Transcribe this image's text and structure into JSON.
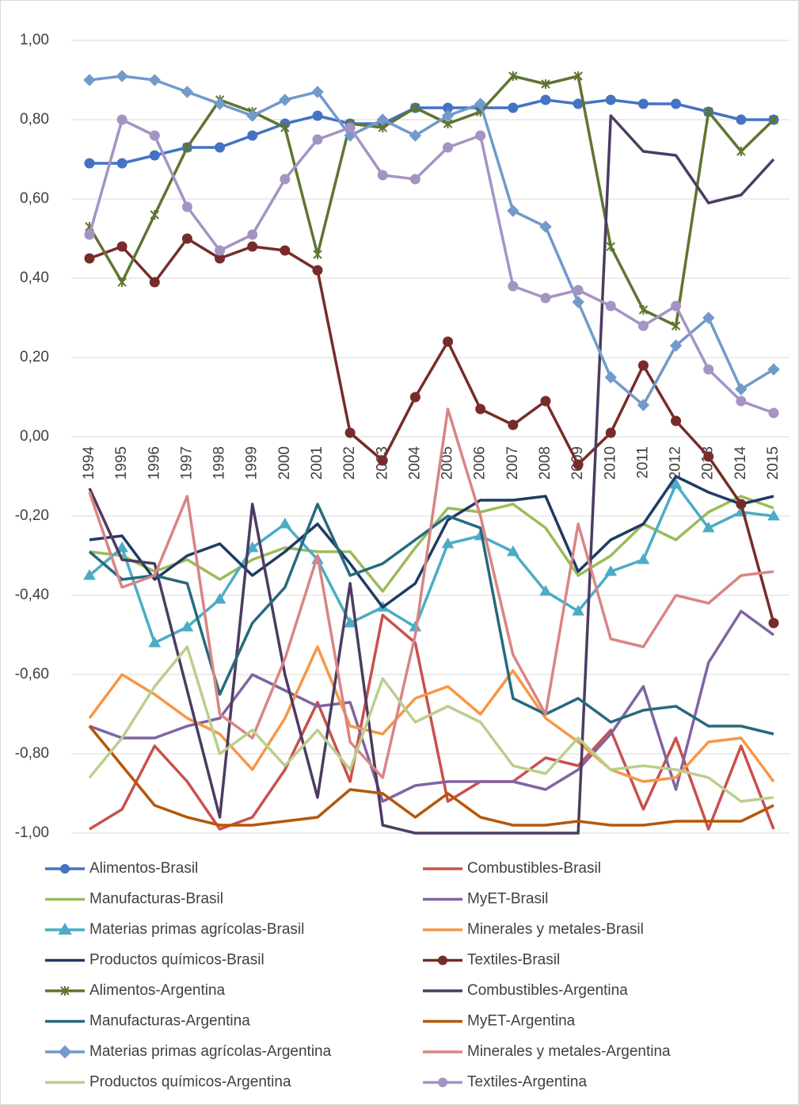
{
  "chart_data": {
    "type": "line",
    "categories": [
      "1994",
      "1995",
      "1996",
      "1997",
      "1998",
      "1999",
      "2000",
      "2001",
      "2002",
      "2003",
      "2004",
      "2005",
      "2006",
      "2007",
      "2008",
      "2009",
      "2010",
      "2011",
      "2012",
      "2013",
      "2014",
      "2015"
    ],
    "ylim": [
      -1,
      1
    ],
    "yticks": [
      {
        "value": -1,
        "label": "-1,00"
      },
      {
        "value": -0.8,
        "label": "-0,80"
      },
      {
        "value": -0.6,
        "label": "-0,60"
      },
      {
        "value": -0.4,
        "label": "-0,40"
      },
      {
        "value": -0.2,
        "label": "-0,20"
      },
      {
        "value": 0,
        "label": "0,00"
      },
      {
        "value": 0.2,
        "label": "0,20"
      },
      {
        "value": 0.4,
        "label": "0,40"
      },
      {
        "value": 0.6,
        "label": "0,60"
      },
      {
        "value": 0.8,
        "label": "0,80"
      },
      {
        "value": 1,
        "label": "1,00"
      }
    ],
    "grid": true,
    "legend": "bottom",
    "series": [
      {
        "name": "Alimentos-Brasil",
        "color": "#4472c4",
        "marker": "circle",
        "values": [
          0.69,
          0.69,
          0.71,
          0.73,
          0.73,
          0.76,
          0.79,
          0.81,
          0.79,
          0.79,
          0.83,
          0.83,
          0.83,
          0.83,
          0.85,
          0.84,
          0.85,
          0.84,
          0.84,
          0.82,
          0.8,
          0.8
        ]
      },
      {
        "name": "Combustibles-Brasil",
        "color": "#c9504d",
        "marker": "none",
        "values": [
          -0.99,
          -0.94,
          -0.78,
          -0.87,
          -0.99,
          -0.96,
          -0.84,
          -0.67,
          -0.87,
          -0.45,
          -0.52,
          -0.92,
          -0.87,
          -0.87,
          -0.81,
          -0.83,
          -0.74,
          -0.94,
          -0.76,
          -0.99,
          -0.78,
          -0.99
        ]
      },
      {
        "name": "Manufacturas-Brasil",
        "color": "#9bbb59",
        "marker": "none",
        "values": [
          -0.29,
          -0.3,
          -0.34,
          -0.31,
          -0.36,
          -0.31,
          -0.28,
          -0.29,
          -0.29,
          -0.39,
          -0.28,
          -0.18,
          -0.19,
          -0.17,
          -0.23,
          -0.35,
          -0.3,
          -0.22,
          -0.26,
          -0.19,
          -0.15,
          -0.18
        ]
      },
      {
        "name": "MyET-Brasil",
        "color": "#8064a2",
        "marker": "none",
        "values": [
          -0.73,
          -0.76,
          -0.76,
          -0.73,
          -0.71,
          -0.6,
          -0.64,
          -0.68,
          -0.67,
          -0.92,
          -0.88,
          -0.87,
          -0.87,
          -0.87,
          -0.89,
          -0.84,
          -0.75,
          -0.63,
          -0.89,
          -0.57,
          -0.44,
          -0.5
        ]
      },
      {
        "name": "Materias primas agrícolas-Brasil",
        "color": "#4bacc6",
        "marker": "triangle",
        "values": [
          -0.35,
          -0.28,
          -0.52,
          -0.48,
          -0.41,
          -0.28,
          -0.22,
          -0.31,
          -0.47,
          -0.43,
          -0.48,
          -0.27,
          -0.25,
          -0.29,
          -0.39,
          -0.44,
          -0.34,
          -0.31,
          -0.12,
          -0.23,
          -0.19,
          -0.2
        ]
      },
      {
        "name": "Minerales y metales-Brasil",
        "color": "#f79646",
        "marker": "none",
        "values": [
          -0.71,
          -0.6,
          -0.65,
          -0.71,
          -0.75,
          -0.84,
          -0.71,
          -0.53,
          -0.73,
          -0.75,
          -0.66,
          -0.63,
          -0.7,
          -0.59,
          -0.71,
          -0.77,
          -0.84,
          -0.87,
          -0.86,
          -0.77,
          -0.76,
          -0.87
        ]
      },
      {
        "name": "Productos químicos-Brasil",
        "color": "#1f3b63",
        "marker": "none",
        "values": [
          -0.26,
          -0.25,
          -0.36,
          -0.3,
          -0.27,
          -0.35,
          -0.29,
          -0.22,
          -0.32,
          -0.43,
          -0.37,
          -0.21,
          -0.16,
          -0.16,
          -0.15,
          -0.34,
          -0.26,
          -0.22,
          -0.1,
          -0.14,
          -0.17,
          -0.15
        ]
      },
      {
        "name": "Textiles-Brasil",
        "color": "#772c2a",
        "marker": "circle",
        "values": [
          0.45,
          0.48,
          0.39,
          0.5,
          0.45,
          0.48,
          0.47,
          0.42,
          0.01,
          -0.06,
          0.1,
          0.24,
          0.07,
          0.03,
          0.09,
          -0.07,
          0.01,
          0.18,
          0.04,
          -0.05,
          -0.17,
          -0.47
        ]
      },
      {
        "name": "Alimentos-Argentina",
        "color": "#5f7530",
        "marker": "star",
        "values": [
          0.53,
          0.39,
          0.56,
          0.73,
          0.85,
          0.82,
          0.78,
          0.46,
          0.79,
          0.78,
          0.83,
          0.79,
          0.82,
          0.91,
          0.89,
          0.91,
          0.48,
          0.32,
          0.28,
          0.82,
          0.72,
          0.8
        ]
      },
      {
        "name": "Combustibles-Argentina",
        "color": "#4d3b62",
        "marker": "none",
        "values": [
          -0.13,
          -0.31,
          -0.32,
          -0.64,
          -0.96,
          -0.17,
          -0.6,
          -0.91,
          -0.37,
          -0.98,
          -1.0,
          -1.0,
          -1.0,
          -1.0,
          -1.0,
          -1.0,
          0.81,
          0.72,
          0.71,
          0.59,
          0.61,
          0.7
        ]
      },
      {
        "name": "Manufacturas-Argentina",
        "color": "#276a7c",
        "marker": "none",
        "values": [
          -0.29,
          -0.36,
          -0.35,
          -0.37,
          -0.65,
          -0.47,
          -0.38,
          -0.17,
          -0.35,
          -0.32,
          -0.26,
          -0.2,
          -0.23,
          -0.66,
          -0.7,
          -0.66,
          -0.72,
          -0.69,
          -0.68,
          -0.73,
          -0.73,
          -0.75
        ]
      },
      {
        "name": "MyET-Argentina",
        "color": "#b65708",
        "marker": "none",
        "values": [
          -0.73,
          -0.83,
          -0.93,
          -0.96,
          -0.98,
          -0.98,
          -0.97,
          -0.96,
          -0.89,
          -0.9,
          -0.96,
          -0.9,
          -0.96,
          -0.98,
          -0.98,
          -0.97,
          -0.98,
          -0.98,
          -0.97,
          -0.97,
          -0.97,
          -0.93
        ]
      },
      {
        "name": "Materias primas agrícolas-Argentina",
        "color": "#729aca",
        "marker": "diamond",
        "values": [
          0.9,
          0.91,
          0.9,
          0.87,
          0.84,
          0.81,
          0.85,
          0.87,
          0.76,
          0.8,
          0.76,
          0.81,
          0.84,
          0.57,
          0.53,
          0.34,
          0.15,
          0.08,
          0.23,
          0.3,
          0.12,
          0.17
        ]
      },
      {
        "name": "Minerales y metales-Argentina",
        "color": "#d98583",
        "marker": "none",
        "values": [
          -0.14,
          -0.38,
          -0.35,
          -0.15,
          -0.7,
          -0.76,
          -0.56,
          -0.3,
          -0.77,
          -0.86,
          -0.5,
          0.07,
          -0.2,
          -0.55,
          -0.7,
          -0.22,
          -0.51,
          -0.53,
          -0.4,
          -0.42,
          -0.35,
          -0.34
        ]
      },
      {
        "name": "Productos químicos-Argentina",
        "color": "#b9cf8d",
        "marker": "none",
        "values": [
          -0.86,
          -0.76,
          -0.63,
          -0.53,
          -0.8,
          -0.74,
          -0.83,
          -0.74,
          -0.84,
          -0.61,
          -0.72,
          -0.68,
          -0.72,
          -0.83,
          -0.85,
          -0.76,
          -0.84,
          -0.83,
          -0.84,
          -0.86,
          -0.92,
          -0.91
        ]
      },
      {
        "name": "Textiles-Argentina",
        "color": "#a593c4",
        "marker": "circle",
        "values": [
          0.51,
          0.8,
          0.76,
          0.58,
          0.47,
          0.51,
          0.65,
          0.75,
          0.78,
          0.66,
          0.65,
          0.73,
          0.76,
          0.38,
          0.35,
          0.37,
          0.33,
          0.28,
          0.33,
          0.17,
          0.09,
          0.06
        ]
      }
    ]
  }
}
